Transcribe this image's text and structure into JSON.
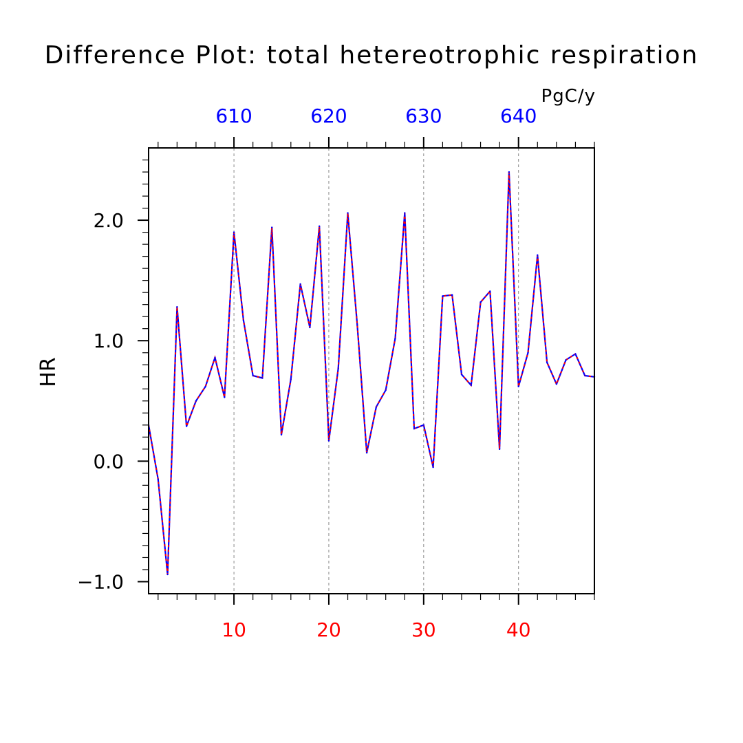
{
  "chart_data": {
    "type": "line",
    "title": "Difference Plot: total hetereotrophic respiration",
    "units": "PgC/y",
    "ylabel": "HR",
    "xlabel": "",
    "ylim": [
      -1.1,
      2.6
    ],
    "xlim": [
      1,
      48
    ],
    "yticks": [
      -1.0,
      0.0,
      1.0,
      2.0
    ],
    "ytick_labels": [
      "−1.0",
      "0.0",
      "1.0",
      "2.0"
    ],
    "bottom_xticks": [
      10,
      20,
      30,
      40
    ],
    "bottom_xtick_labels": [
      "10",
      "20",
      "30",
      "40"
    ],
    "top_xticks": [
      610,
      620,
      630,
      640
    ],
    "top_xtick_labels": [
      "610",
      "620",
      "630",
      "640"
    ],
    "top_axis_offset": 600,
    "grid": "vertical dashed at major x ticks",
    "colors": {
      "line_solid": "#0000ff",
      "line_dashed": "#ff0000",
      "bottom_axis_text": "#ff0000",
      "top_axis_text": "#0000ff",
      "text": "#000000"
    },
    "x": [
      1,
      2,
      3,
      4,
      5,
      6,
      7,
      8,
      9,
      10,
      11,
      12,
      13,
      14,
      15,
      16,
      17,
      18,
      19,
      20,
      21,
      22,
      23,
      24,
      25,
      26,
      27,
      28,
      29,
      30,
      31,
      32,
      33,
      34,
      35,
      36,
      37,
      38,
      39,
      40,
      41,
      42,
      43,
      44,
      45,
      46,
      47,
      48
    ],
    "series": [
      {
        "values": [
          0.3,
          -0.15,
          -0.94,
          1.28,
          0.29,
          0.5,
          0.62,
          0.86,
          0.53,
          1.9,
          1.17,
          0.71,
          0.69,
          1.94,
          0.22,
          0.68,
          1.47,
          1.11,
          1.95,
          0.17,
          0.77,
          2.06,
          1.13,
          0.07,
          0.45,
          0.59,
          1.02,
          2.06,
          0.27,
          0.3,
          -0.05,
          1.37,
          1.38,
          0.72,
          0.63,
          1.32,
          1.41,
          0.1,
          2.4,
          0.62,
          0.9,
          1.71,
          0.82,
          0.64,
          0.84,
          0.89,
          0.71,
          0.7
        ]
      }
    ]
  }
}
